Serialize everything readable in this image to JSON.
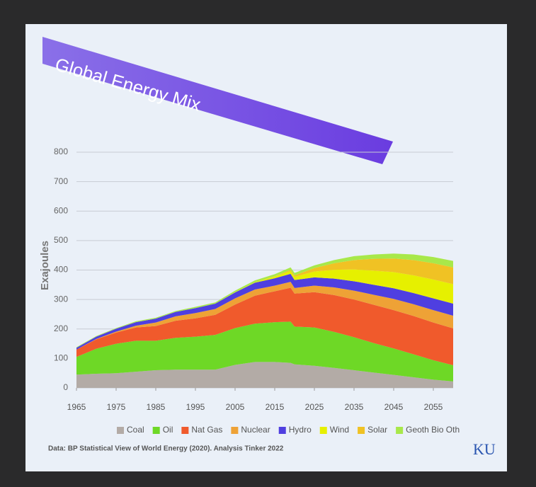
{
  "chart_data": {
    "type": "stacked_area",
    "title": "Global Energy Mix",
    "y_label": "Exajoules",
    "source": "Data: BP Statistical View of World Energy (2020). Analysis Tinker 2022",
    "logo": "KU",
    "x": [
      1965,
      1970,
      1975,
      1980,
      1985,
      1990,
      1995,
      2000,
      2005,
      2010,
      2015,
      2019,
      2020,
      2025,
      2030,
      2035,
      2040,
      2045,
      2050,
      2055,
      2060
    ],
    "xlim": [
      1965,
      2060
    ],
    "xticks": [
      1965,
      1975,
      1985,
      1995,
      2005,
      2015,
      2025,
      2035,
      2045,
      2055
    ],
    "ylim": [
      0,
      800
    ],
    "yticks": [
      0,
      100,
      200,
      300,
      400,
      500,
      600,
      700,
      800
    ],
    "grid": true,
    "legend": "bottom",
    "series": [
      {
        "name": "Coal",
        "color": "#b3aba6",
        "values": [
          45,
          48,
          50,
          55,
          60,
          62,
          62,
          62,
          78,
          88,
          88,
          85,
          80,
          75,
          68,
          60,
          52,
          44,
          36,
          28,
          22
        ]
      },
      {
        "name": "Oil",
        "color": "#6ed826",
        "values": [
          60,
          85,
          100,
          105,
          100,
          108,
          112,
          118,
          125,
          130,
          135,
          140,
          128,
          130,
          122,
          112,
          100,
          90,
          78,
          66,
          55
        ]
      },
      {
        "name": "Nat Gas",
        "color": "#f05a2c",
        "values": [
          25,
          32,
          38,
          45,
          50,
          58,
          62,
          68,
          80,
          95,
          105,
          115,
          112,
          120,
          125,
          128,
          130,
          130,
          130,
          128,
          125
        ]
      },
      {
        "name": "Nuclear",
        "color": "#eea236",
        "values": [
          0,
          1,
          3,
          6,
          12,
          15,
          18,
          20,
          21,
          21,
          19,
          20,
          19,
          22,
          26,
          30,
          34,
          38,
          40,
          42,
          43
        ]
      },
      {
        "name": "Hydro",
        "color": "#4f3fe0",
        "values": [
          6,
          8,
          10,
          12,
          13,
          15,
          17,
          18,
          20,
          23,
          25,
          27,
          27,
          28,
          30,
          32,
          34,
          36,
          38,
          40,
          41
        ]
      },
      {
        "name": "Wind",
        "color": "#e6f000",
        "values": [
          0,
          0,
          0,
          0,
          0,
          0,
          0,
          0,
          1,
          2,
          6,
          10,
          11,
          20,
          30,
          40,
          48,
          55,
          60,
          64,
          66
        ]
      },
      {
        "name": "Solar",
        "color": "#f0c224",
        "values": [
          0,
          0,
          0,
          0,
          0,
          0,
          0,
          0,
          0,
          0,
          1,
          4,
          5,
          12,
          22,
          32,
          40,
          46,
          52,
          55,
          57
        ]
      },
      {
        "name": "Geoth Bio Oth",
        "color": "#a8e84a",
        "values": [
          2,
          2,
          2,
          3,
          3,
          3,
          4,
          4,
          5,
          6,
          7,
          8,
          8,
          9,
          11,
          13,
          15,
          17,
          19,
          21,
          22
        ]
      }
    ]
  }
}
